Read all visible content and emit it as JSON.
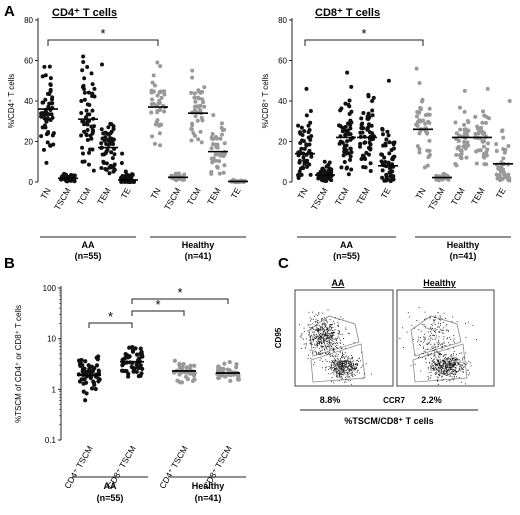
{
  "panel_labels": {
    "A": "A",
    "B": "B",
    "C": "C"
  },
  "chart_data": [
    {
      "id": "A_left",
      "type": "scatter",
      "title": "CD4⁺ T cells",
      "ylabel": "%/CD4⁺ T cells",
      "ylim": [
        0,
        80
      ],
      "yticks": [
        "0",
        "20",
        "40",
        "60",
        "80"
      ],
      "categories": [
        "TN",
        "TSCM",
        "TCM",
        "TEM",
        "TE",
        "TN",
        "TSCM",
        "TCM",
        "TEM",
        "TE"
      ],
      "groups": [
        {
          "label": "AA",
          "n": "(n=55)"
        },
        {
          "label": "Healthy",
          "n": "(n=41)"
        }
      ],
      "series": [
        {
          "category": "TN",
          "group": "AA",
          "color": "#111111",
          "median": 36,
          "spread": 11,
          "min": 5,
          "max": 57,
          "count": 55
        },
        {
          "category": "TSCM",
          "group": "AA",
          "color": "#111111",
          "median": 1.8,
          "spread": 1.1,
          "min": 0.3,
          "max": 4,
          "count": 55
        },
        {
          "category": "TCM",
          "group": "AA",
          "color": "#111111",
          "median": 31,
          "spread": 12,
          "min": 5,
          "max": 62,
          "count": 55
        },
        {
          "category": "TEM",
          "group": "AA",
          "color": "#111111",
          "median": 17,
          "spread": 9,
          "min": 2,
          "max": 58,
          "count": 55
        },
        {
          "category": "TE",
          "group": "AA",
          "color": "#111111",
          "median": 1,
          "spread": 2.2,
          "min": 0,
          "max": 14,
          "count": 55
        },
        {
          "category": "TN",
          "group": "Healthy",
          "color": "#999999",
          "median": 37,
          "spread": 9,
          "min": 17,
          "max": 59,
          "count": 41
        },
        {
          "category": "TSCM",
          "group": "Healthy",
          "color": "#999999",
          "median": 2.3,
          "spread": 0.9,
          "min": 0.8,
          "max": 4.2,
          "count": 41
        },
        {
          "category": "TCM",
          "group": "Healthy",
          "color": "#999999",
          "median": 34,
          "spread": 8,
          "min": 18,
          "max": 55,
          "count": 41
        },
        {
          "category": "TEM",
          "group": "Healthy",
          "color": "#999999",
          "median": 15,
          "spread": 6,
          "min": 4,
          "max": 33,
          "count": 41
        },
        {
          "category": "TE",
          "group": "Healthy",
          "color": "#999999",
          "median": 0.3,
          "spread": 0.3,
          "min": 0,
          "max": 1,
          "count": 41
        }
      ],
      "significance": [
        {
          "from": "TN (AA)",
          "to": "TN (Healthy)",
          "label": "*"
        }
      ]
    },
    {
      "id": "A_right",
      "type": "scatter",
      "title": "CD8⁺ T cells",
      "ylabel": "%/CD8⁺ T cells",
      "ylim": [
        0,
        80
      ],
      "yticks": [
        "0",
        "20",
        "40",
        "60",
        "80"
      ],
      "categories": [
        "TN",
        "TSCM",
        "TCM",
        "TEM",
        "TE",
        "TN",
        "TSCM",
        "TCM",
        "TEM",
        "TE"
      ],
      "groups": [
        {
          "label": "AA",
          "n": "(n=55)"
        },
        {
          "label": "Healthy",
          "n": "(n=41)"
        }
      ],
      "series": [
        {
          "category": "TN",
          "group": "AA",
          "color": "#111111",
          "median": 14,
          "spread": 10,
          "min": 1,
          "max": 46,
          "count": 55
        },
        {
          "category": "TSCM",
          "group": "AA",
          "color": "#111111",
          "median": 3.5,
          "spread": 2,
          "min": 0.5,
          "max": 10,
          "count": 55
        },
        {
          "category": "TCM",
          "group": "AA",
          "color": "#111111",
          "median": 22,
          "spread": 10,
          "min": 3,
          "max": 54,
          "count": 55
        },
        {
          "category": "TEM",
          "group": "AA",
          "color": "#111111",
          "median": 22,
          "spread": 8,
          "min": 5,
          "max": 43,
          "count": 55
        },
        {
          "category": "TE",
          "group": "AA",
          "color": "#111111",
          "median": 8,
          "spread": 9,
          "min": 0,
          "max": 50,
          "count": 55
        },
        {
          "category": "TN",
          "group": "Healthy",
          "color": "#999999",
          "median": 26,
          "spread": 9,
          "min": 7,
          "max": 56,
          "count": 41
        },
        {
          "category": "TSCM",
          "group": "Healthy",
          "color": "#999999",
          "median": 2.2,
          "spread": 0.8,
          "min": 0.6,
          "max": 4,
          "count": 41
        },
        {
          "category": "TCM",
          "group": "Healthy",
          "color": "#999999",
          "median": 22,
          "spread": 8,
          "min": 6,
          "max": 45,
          "count": 41
        },
        {
          "category": "TEM",
          "group": "Healthy",
          "color": "#999999",
          "median": 22,
          "spread": 8,
          "min": 8,
          "max": 46,
          "count": 41
        },
        {
          "category": "TE",
          "group": "Healthy",
          "color": "#999999",
          "median": 9,
          "spread": 7,
          "min": 0,
          "max": 40,
          "count": 41
        }
      ],
      "significance": [
        {
          "from": "TN (AA)",
          "to": "TN (Healthy)",
          "label": "*"
        }
      ]
    },
    {
      "id": "B",
      "type": "scatter",
      "scale": "log",
      "title": "",
      "ylabel": "%TSCM of CD4⁺ or CD8⁺ T cells",
      "ylim": [
        0.1,
        100
      ],
      "yticks": [
        "0.1",
        "1",
        "10",
        "100"
      ],
      "categories": [
        "CD4⁺ TSCM",
        "CD8⁺ TSCM",
        "CD4⁺ TSCM",
        "CD8⁺ TSCM"
      ],
      "groups": [
        {
          "label": "AA",
          "n": "(n=55)"
        },
        {
          "label": "Healthy",
          "n": "(n=41)"
        }
      ],
      "series": [
        {
          "category": "CD4⁺ TSCM",
          "group": "AA",
          "color": "#111111",
          "median": 1.9,
          "spread_log": 0.18,
          "min": 0.5,
          "max": 4.5,
          "count": 55
        },
        {
          "category": "CD8⁺ TSCM",
          "group": "AA",
          "color": "#111111",
          "median": 3.5,
          "spread_log": 0.15,
          "min": 1.2,
          "max": 9,
          "count": 55
        },
        {
          "category": "CD4⁺ TSCM",
          "group": "Healthy",
          "color": "#999999",
          "median": 2.3,
          "spread_log": 0.1,
          "min": 1.1,
          "max": 4.2,
          "count": 41
        },
        {
          "category": "CD8⁺ TSCM",
          "group": "Healthy",
          "color": "#999999",
          "median": 2.1,
          "spread_log": 0.1,
          "min": 1,
          "max": 3.8,
          "count": 41
        }
      ],
      "significance": [
        {
          "from": "CD4⁺ TSCM (AA)",
          "to": "CD8⁺ TSCM (AA)",
          "label": "*"
        },
        {
          "from": "CD8⁺ TSCM (AA)",
          "to": "CD4⁺ TSCM (Healthy)",
          "label": "*"
        },
        {
          "from": "CD8⁺ TSCM (AA)",
          "to": "CD8⁺ TSCM (Healthy)",
          "label": "*"
        }
      ]
    }
  ],
  "panel_c": {
    "samples": [
      {
        "title": "AA",
        "gate_percent": "8.8%"
      },
      {
        "title": "Healthy",
        "gate_percent": "2.2%"
      }
    ],
    "y_axis": "CD95",
    "x_axis": "CCR7",
    "caption": "%TSCM/CD8⁺ T cells"
  }
}
